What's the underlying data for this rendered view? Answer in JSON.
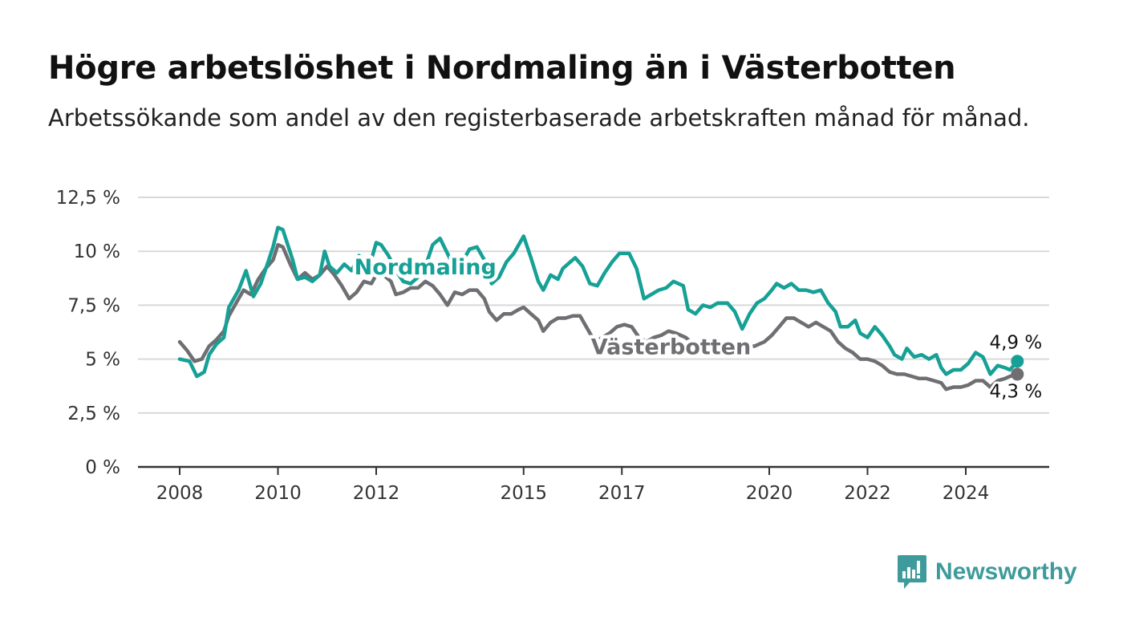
{
  "title": "Högre arbetslöshet i Nordmaling än i Västerbotten",
  "subtitle": "Arbetssökande som andel av den registerbaserade arbetskraften månad för månad.",
  "brand": {
    "name": "Newsworthy",
    "icon": "newsworthy-logo-icon",
    "color": "#3f9b9b"
  },
  "chart_data": {
    "type": "line",
    "ylim": [
      0,
      12.5
    ],
    "xlim": [
      2007.7,
      2025.9
    ],
    "y_ticks": [
      {
        "value": 0,
        "label": "0 %"
      },
      {
        "value": 2.5,
        "label": "2,5 %"
      },
      {
        "value": 5,
        "label": "5 %"
      },
      {
        "value": 7.5,
        "label": "7,5 %"
      },
      {
        "value": 10,
        "label": "10 %"
      },
      {
        "value": 12.5,
        "label": "12,5 %"
      }
    ],
    "x_ticks": [
      {
        "value": 2008,
        "label": "2008"
      },
      {
        "value": 2010,
        "label": "2010"
      },
      {
        "value": 2012,
        "label": "2012"
      },
      {
        "value": 2015,
        "label": "2015"
      },
      {
        "value": 2017,
        "label": "2017"
      },
      {
        "value": 2020,
        "label": "2020"
      },
      {
        "value": 2022,
        "label": "2022"
      },
      {
        "value": 2024,
        "label": "2024"
      }
    ],
    "grid": true,
    "series": [
      {
        "name": "Nordmaling",
        "color": "#16a096",
        "label_at": [
          2013.0,
          9.3
        ],
        "end_label": "4,9 %",
        "points": [
          [
            2008.0,
            5.0
          ],
          [
            2008.2,
            4.9
          ],
          [
            2008.35,
            4.2
          ],
          [
            2008.5,
            4.4
          ],
          [
            2008.6,
            5.2
          ],
          [
            2008.75,
            5.7
          ],
          [
            2008.9,
            6.0
          ],
          [
            2009.0,
            7.4
          ],
          [
            2009.2,
            8.2
          ],
          [
            2009.35,
            9.1
          ],
          [
            2009.5,
            7.9
          ],
          [
            2009.65,
            8.5
          ],
          [
            2009.8,
            9.5
          ],
          [
            2009.9,
            10.2
          ],
          [
            2010.0,
            11.1
          ],
          [
            2010.1,
            11.0
          ],
          [
            2010.3,
            9.6
          ],
          [
            2010.4,
            8.7
          ],
          [
            2010.55,
            8.8
          ],
          [
            2010.7,
            8.6
          ],
          [
            2010.85,
            8.9
          ],
          [
            2010.95,
            10.0
          ],
          [
            2011.05,
            9.3
          ],
          [
            2011.2,
            9.0
          ],
          [
            2011.35,
            9.4
          ],
          [
            2011.5,
            9.1
          ],
          [
            2011.65,
            9.8
          ],
          [
            2011.75,
            9.5
          ],
          [
            2011.9,
            9.6
          ],
          [
            2012.0,
            10.4
          ],
          [
            2012.1,
            10.3
          ],
          [
            2012.25,
            9.8
          ],
          [
            2012.4,
            9.1
          ],
          [
            2012.55,
            8.6
          ],
          [
            2012.7,
            8.5
          ],
          [
            2012.85,
            8.8
          ],
          [
            2013.0,
            9.3
          ],
          [
            2013.15,
            10.3
          ],
          [
            2013.3,
            10.6
          ],
          [
            2013.45,
            9.9
          ],
          [
            2013.6,
            9.2
          ],
          [
            2013.75,
            9.5
          ],
          [
            2013.9,
            10.1
          ],
          [
            2014.05,
            10.2
          ],
          [
            2014.2,
            9.6
          ],
          [
            2014.35,
            8.5
          ],
          [
            2014.5,
            8.8
          ],
          [
            2014.65,
            9.5
          ],
          [
            2014.8,
            9.9
          ],
          [
            2015.0,
            10.7
          ],
          [
            2015.15,
            9.7
          ],
          [
            2015.3,
            8.6
          ],
          [
            2015.4,
            8.2
          ],
          [
            2015.55,
            8.9
          ],
          [
            2015.7,
            8.7
          ],
          [
            2015.8,
            9.2
          ],
          [
            2015.95,
            9.5
          ],
          [
            2016.05,
            9.7
          ],
          [
            2016.2,
            9.3
          ],
          [
            2016.35,
            8.5
          ],
          [
            2016.5,
            8.4
          ],
          [
            2016.65,
            9.0
          ],
          [
            2016.8,
            9.5
          ],
          [
            2016.95,
            9.9
          ],
          [
            2017.15,
            9.9
          ],
          [
            2017.3,
            9.2
          ],
          [
            2017.45,
            7.8
          ],
          [
            2017.6,
            8.0
          ],
          [
            2017.75,
            8.2
          ],
          [
            2017.9,
            8.3
          ],
          [
            2018.05,
            8.6
          ],
          [
            2018.25,
            8.4
          ],
          [
            2018.35,
            7.3
          ],
          [
            2018.5,
            7.1
          ],
          [
            2018.65,
            7.5
          ],
          [
            2018.8,
            7.4
          ],
          [
            2018.95,
            7.6
          ],
          [
            2019.15,
            7.6
          ],
          [
            2019.3,
            7.2
          ],
          [
            2019.45,
            6.4
          ],
          [
            2019.6,
            7.1
          ],
          [
            2019.75,
            7.6
          ],
          [
            2019.9,
            7.8
          ],
          [
            2020.05,
            8.2
          ],
          [
            2020.15,
            8.5
          ],
          [
            2020.3,
            8.3
          ],
          [
            2020.45,
            8.5
          ],
          [
            2020.6,
            8.2
          ],
          [
            2020.75,
            8.2
          ],
          [
            2020.9,
            8.1
          ],
          [
            2021.05,
            8.2
          ],
          [
            2021.2,
            7.6
          ],
          [
            2021.35,
            7.2
          ],
          [
            2021.45,
            6.5
          ],
          [
            2021.6,
            6.5
          ],
          [
            2021.75,
            6.8
          ],
          [
            2021.85,
            6.2
          ],
          [
            2022.0,
            6.0
          ],
          [
            2022.15,
            6.5
          ],
          [
            2022.3,
            6.1
          ],
          [
            2022.45,
            5.6
          ],
          [
            2022.55,
            5.2
          ],
          [
            2022.7,
            5.0
          ],
          [
            2022.8,
            5.5
          ],
          [
            2022.95,
            5.1
          ],
          [
            2023.1,
            5.2
          ],
          [
            2023.25,
            5.0
          ],
          [
            2023.4,
            5.2
          ],
          [
            2023.5,
            4.6
          ],
          [
            2023.6,
            4.3
          ],
          [
            2023.75,
            4.5
          ],
          [
            2023.9,
            4.5
          ],
          [
            2024.05,
            4.8
          ],
          [
            2024.2,
            5.3
          ],
          [
            2024.35,
            5.1
          ],
          [
            2024.5,
            4.3
          ],
          [
            2024.65,
            4.7
          ],
          [
            2024.8,
            4.6
          ],
          [
            2024.9,
            4.5
          ],
          [
            2025.05,
            4.9
          ]
        ]
      },
      {
        "name": "Västerbotten",
        "color": "#6f6e72",
        "label_at": [
          2018.0,
          5.6
        ],
        "end_label": "4,3 %",
        "points": [
          [
            2008.0,
            5.8
          ],
          [
            2008.15,
            5.4
          ],
          [
            2008.3,
            4.9
          ],
          [
            2008.45,
            5.0
          ],
          [
            2008.6,
            5.6
          ],
          [
            2008.75,
            5.9
          ],
          [
            2008.9,
            6.3
          ],
          [
            2009.0,
            7.0
          ],
          [
            2009.15,
            7.6
          ],
          [
            2009.3,
            8.2
          ],
          [
            2009.45,
            8.0
          ],
          [
            2009.6,
            8.7
          ],
          [
            2009.75,
            9.2
          ],
          [
            2009.9,
            9.6
          ],
          [
            2010.0,
            10.3
          ],
          [
            2010.1,
            10.2
          ],
          [
            2010.25,
            9.4
          ],
          [
            2010.4,
            8.7
          ],
          [
            2010.55,
            9.0
          ],
          [
            2010.7,
            8.7
          ],
          [
            2010.85,
            8.9
          ],
          [
            2011.0,
            9.3
          ],
          [
            2011.15,
            8.9
          ],
          [
            2011.3,
            8.4
          ],
          [
            2011.45,
            7.8
          ],
          [
            2011.6,
            8.1
          ],
          [
            2011.75,
            8.6
          ],
          [
            2011.9,
            8.5
          ],
          [
            2012.0,
            8.9
          ],
          [
            2012.15,
            8.9
          ],
          [
            2012.3,
            8.6
          ],
          [
            2012.4,
            8.0
          ],
          [
            2012.55,
            8.1
          ],
          [
            2012.7,
            8.3
          ],
          [
            2012.85,
            8.3
          ],
          [
            2013.0,
            8.6
          ],
          [
            2013.15,
            8.4
          ],
          [
            2013.3,
            8.0
          ],
          [
            2013.45,
            7.5
          ],
          [
            2013.6,
            8.1
          ],
          [
            2013.75,
            8.0
          ],
          [
            2013.9,
            8.2
          ],
          [
            2014.05,
            8.2
          ],
          [
            2014.2,
            7.8
          ],
          [
            2014.3,
            7.2
          ],
          [
            2014.45,
            6.8
          ],
          [
            2014.6,
            7.1
          ],
          [
            2014.75,
            7.1
          ],
          [
            2014.9,
            7.3
          ],
          [
            2015.0,
            7.4
          ],
          [
            2015.15,
            7.1
          ],
          [
            2015.3,
            6.8
          ],
          [
            2015.4,
            6.3
          ],
          [
            2015.55,
            6.7
          ],
          [
            2015.7,
            6.9
          ],
          [
            2015.85,
            6.9
          ],
          [
            2016.0,
            7.0
          ],
          [
            2016.15,
            7.0
          ],
          [
            2016.3,
            6.4
          ],
          [
            2016.45,
            5.8
          ],
          [
            2016.6,
            6.0
          ],
          [
            2016.75,
            6.2
          ],
          [
            2016.9,
            6.5
          ],
          [
            2017.05,
            6.6
          ],
          [
            2017.2,
            6.5
          ],
          [
            2017.35,
            6.0
          ],
          [
            2017.5,
            5.8
          ],
          [
            2017.65,
            6.0
          ],
          [
            2017.8,
            6.1
          ],
          [
            2017.95,
            6.3
          ],
          [
            2018.1,
            6.2
          ],
          [
            2018.3,
            6.0
          ],
          [
            2018.5,
            5.6
          ],
          [
            2018.7,
            5.6
          ],
          [
            2018.9,
            5.6
          ],
          [
            2019.1,
            5.6
          ],
          [
            2019.3,
            5.6
          ],
          [
            2019.5,
            5.6
          ],
          [
            2019.7,
            5.6
          ],
          [
            2019.9,
            5.8
          ],
          [
            2020.05,
            6.1
          ],
          [
            2020.2,
            6.5
          ],
          [
            2020.35,
            6.9
          ],
          [
            2020.5,
            6.9
          ],
          [
            2020.65,
            6.7
          ],
          [
            2020.8,
            6.5
          ],
          [
            2020.95,
            6.7
          ],
          [
            2021.1,
            6.5
          ],
          [
            2021.25,
            6.3
          ],
          [
            2021.4,
            5.8
          ],
          [
            2021.55,
            5.5
          ],
          [
            2021.7,
            5.3
          ],
          [
            2021.85,
            5.0
          ],
          [
            2022.0,
            5.0
          ],
          [
            2022.15,
            4.9
          ],
          [
            2022.3,
            4.7
          ],
          [
            2022.45,
            4.4
          ],
          [
            2022.6,
            4.3
          ],
          [
            2022.75,
            4.3
          ],
          [
            2022.9,
            4.2
          ],
          [
            2023.05,
            4.1
          ],
          [
            2023.2,
            4.1
          ],
          [
            2023.35,
            4.0
          ],
          [
            2023.5,
            3.9
          ],
          [
            2023.6,
            3.6
          ],
          [
            2023.75,
            3.7
          ],
          [
            2023.9,
            3.7
          ],
          [
            2024.05,
            3.8
          ],
          [
            2024.2,
            4.0
          ],
          [
            2024.35,
            4.0
          ],
          [
            2024.5,
            3.7
          ],
          [
            2024.65,
            4.0
          ],
          [
            2024.8,
            4.1
          ],
          [
            2024.9,
            4.2
          ],
          [
            2025.05,
            4.3
          ]
        ]
      }
    ]
  }
}
